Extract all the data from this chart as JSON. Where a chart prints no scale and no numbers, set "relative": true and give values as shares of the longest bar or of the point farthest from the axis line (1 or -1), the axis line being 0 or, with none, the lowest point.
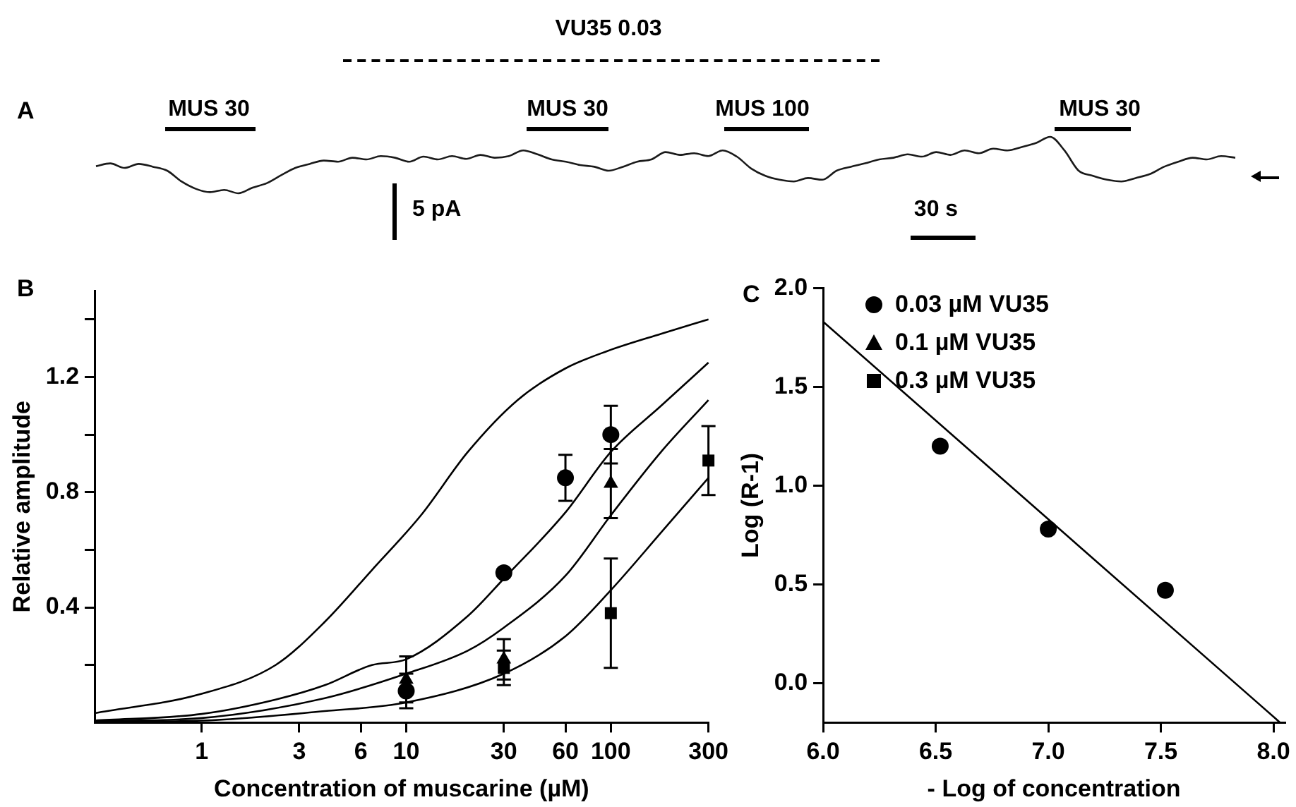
{
  "chart_data": [
    {
      "type": "line",
      "title": "A",
      "relative": true,
      "categories": [
        null,
        null,
        null,
        null,
        null,
        null,
        null,
        null,
        null,
        null,
        null,
        null,
        null,
        null,
        null,
        null,
        null,
        null,
        null,
        null,
        null,
        null,
        null,
        null,
        null,
        null,
        null,
        null,
        null,
        null,
        null,
        null,
        null,
        null,
        null,
        null,
        null,
        null,
        null,
        null,
        null,
        null,
        null,
        null,
        null,
        null,
        null,
        null,
        null,
        null,
        null,
        null,
        null,
        null,
        null,
        null,
        null,
        null,
        null,
        null,
        null,
        null,
        null,
        null,
        null,
        null,
        null,
        null,
        null,
        null,
        null,
        null,
        null,
        null,
        null,
        null,
        null,
        null,
        null,
        null,
        null
      ],
      "series": [
        {
          "color": "#1a1a1a",
          "values": [
            0.48,
            0.53,
            0.45,
            0.52,
            0.47,
            0.4,
            0.21,
            0.08,
            0.02,
            0.06,
            0,
            0.1,
            0.18,
            0.32,
            0.45,
            0.52,
            0.58,
            0.56,
            0.63,
            0.6,
            0.66,
            0.63,
            0.56,
            0.65,
            0.6,
            0.66,
            0.61,
            0.68,
            0.63,
            0.66,
            0.76,
            0.69,
            0.6,
            0.56,
            0.5,
            0.47,
            0.4,
            0.47,
            0.56,
            0.6,
            0.73,
            0.68,
            0.71,
            0.66,
            0.76,
            0.65,
            0.44,
            0.31,
            0.24,
            0.21,
            0.27,
            0.24,
            0.4,
            0.47,
            0.53,
            0.6,
            0.63,
            0.69,
            0.65,
            0.73,
            0.68,
            0.76,
            0.71,
            0.79,
            0.76,
            0.82,
            0.89,
            1,
            0.76,
            0.4,
            0.31,
            0.24,
            0.21,
            0.27,
            0.34,
            0.47,
            0.56,
            0.63,
            0.6,
            0.66,
            0.63
          ]
        }
      ],
      "annotations": [
        "VU35 0.03",
        "MUS 30",
        "MUS 30",
        "MUS 100",
        "MUS 30",
        "5 pA",
        "30 s"
      ]
    },
    {
      "type": "scatter",
      "title": "B",
      "xlabel": "Concentration of muscarine (µM)",
      "ylabel": "Relative amplitude",
      "log": "x",
      "xlim": [
        0.3,
        300
      ],
      "xticks": [
        1,
        3,
        6,
        10,
        30,
        60,
        100,
        300
      ],
      "ylim": [
        0,
        1.5
      ],
      "yticks": [
        {
          "value": 0.2,
          "label": null
        },
        0.4,
        {
          "value": 0.6,
          "label": null
        },
        0.8,
        {
          "value": 1.0,
          "label": null
        },
        1.2,
        {
          "value": 1.4,
          "label": null
        }
      ],
      "legend": "right",
      "series": [
        {
          "name": "0.03 µM VU35",
          "color": "#000000",
          "marker": "circle",
          "x": [
            10,
            30,
            60,
            100
          ],
          "values": [
            0.11,
            0.52,
            0.85,
            1.0
          ],
          "errors": [
            0.06,
            null,
            0.08,
            0.1
          ]
        },
        {
          "name": "0.1 µM VU35",
          "color": "#000000",
          "marker": "triangle",
          "x": [
            10,
            30,
            100
          ],
          "values": [
            0.15,
            0.22,
            0.83
          ],
          "errors": [
            0.08,
            0.07,
            0.12
          ]
        },
        {
          "name": "0.3 µM VU35",
          "color": "#000000",
          "marker": "square",
          "x": [
            30,
            100,
            300
          ],
          "values": [
            0.19,
            0.38,
            0.91
          ],
          "errors": [
            0.06,
            0.19,
            0.12
          ]
        },
        {
          "type": "line",
          "color": "#000000",
          "marker": "none",
          "x": [
            0.3,
            1,
            2.3,
            4,
            6.8,
            11.8,
            20,
            35,
            60,
            96,
            176,
            300
          ],
          "values": [
            0.033,
            0.1,
            0.2,
            0.35,
            0.53,
            0.72,
            0.94,
            1.12,
            1.23,
            1.29,
            1.35,
            1.4
          ]
        },
        {
          "type": "line",
          "color": "#000000",
          "marker": "none",
          "x": [
            0.3,
            1,
            2.3,
            4,
            6.8,
            10,
            20,
            30,
            60,
            100,
            176,
            300
          ],
          "values": [
            0.007,
            0.03,
            0.08,
            0.13,
            0.2,
            0.22,
            0.37,
            0.5,
            0.73,
            0.94,
            1.1,
            1.25
          ]
        },
        {
          "type": "line",
          "color": "#000000",
          "marker": "none",
          "x": [
            0.3,
            1,
            4,
            10,
            20,
            30,
            60,
            100,
            176,
            300
          ],
          "values": [
            0.005,
            0.016,
            0.085,
            0.17,
            0.25,
            0.33,
            0.51,
            0.72,
            0.94,
            1.12
          ]
        },
        {
          "type": "line",
          "color": "#000000",
          "marker": "none",
          "x": [
            0.3,
            1,
            4,
            10,
            30,
            60,
            100,
            176,
            300
          ],
          "values": [
            0.003,
            0.007,
            0.04,
            0.07,
            0.17,
            0.3,
            0.46,
            0.66,
            0.85
          ]
        }
      ]
    },
    {
      "type": "scatter",
      "title": "C",
      "xlabel": "- Log of concentration",
      "ylabel": "Log (R-1)",
      "xlim": [
        6,
        8.05
      ],
      "xticks": [
        {
          "value": 6,
          "label": "6.0"
        },
        {
          "value": 6.5,
          "label": "6.5"
        },
        {
          "value": 7,
          "label": "7.0"
        },
        {
          "value": 7.5,
          "label": "7.5"
        },
        {
          "value": 8,
          "label": "8.0"
        }
      ],
      "ylim": [
        -0.2,
        2.0
      ],
      "yticks": [
        {
          "value": 0,
          "label": "0.0"
        },
        {
          "value": 0.5,
          "label": "0.5"
        },
        {
          "value": 1,
          "label": "1.0"
        },
        {
          "value": 1.5,
          "label": "1.5"
        },
        {
          "value": 2,
          "label": "2.0"
        }
      ],
      "series": [
        {
          "color": "#000000",
          "marker": "circle",
          "x": [
            6.52,
            7.0,
            7.52
          ],
          "values": [
            1.2,
            0.78,
            0.47
          ]
        },
        {
          "type": "line",
          "color": "#000000",
          "marker": "none",
          "x": [
            6.0,
            8.03
          ],
          "values": [
            1.83,
            -0.2
          ]
        }
      ]
    }
  ]
}
